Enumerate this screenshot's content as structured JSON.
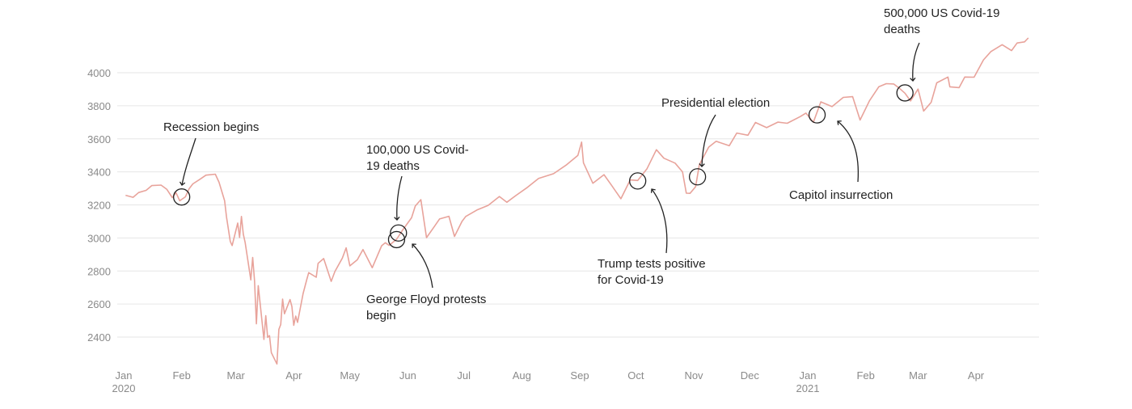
{
  "chart_data": {
    "type": "line",
    "title": "",
    "xlabel": "",
    "ylabel": "",
    "ylim": [
      2250,
      4220
    ],
    "y_ticks": [
      2400,
      2600,
      2800,
      3000,
      3200,
      3400,
      3600,
      3800,
      4000
    ],
    "grid": true,
    "x_ticks": [
      {
        "month": "Jan",
        "year": "2020",
        "date": "2020-01-01"
      },
      {
        "month": "Feb",
        "year": "",
        "date": "2020-02-01"
      },
      {
        "month": "Mar",
        "year": "",
        "date": "2020-03-01"
      },
      {
        "month": "Apr",
        "year": "",
        "date": "2020-04-01"
      },
      {
        "month": "May",
        "year": "",
        "date": "2020-05-01"
      },
      {
        "month": "Jun",
        "year": "",
        "date": "2020-06-01"
      },
      {
        "month": "Jul",
        "year": "",
        "date": "2020-07-01"
      },
      {
        "month": "Aug",
        "year": "",
        "date": "2020-08-01"
      },
      {
        "month": "Sep",
        "year": "",
        "date": "2020-09-01"
      },
      {
        "month": "Oct",
        "year": "",
        "date": "2020-10-01"
      },
      {
        "month": "Nov",
        "year": "",
        "date": "2020-11-01"
      },
      {
        "month": "Dec",
        "year": "",
        "date": "2020-12-01"
      },
      {
        "month": "Jan",
        "year": "2021",
        "date": "2021-01-01"
      },
      {
        "month": "Feb",
        "year": "",
        "date": "2021-02-01"
      },
      {
        "month": "Mar",
        "year": "",
        "date": "2021-03-01"
      },
      {
        "month": "Apr",
        "year": "",
        "date": "2021-04-01"
      }
    ],
    "x_range": [
      "2020-01-01",
      "2021-04-30"
    ],
    "series": [
      {
        "color": "#e8a39b",
        "points": [
          [
            "2020-01-02",
            3258
          ],
          [
            "2020-01-06",
            3246
          ],
          [
            "2020-01-09",
            3275
          ],
          [
            "2020-01-13",
            3288
          ],
          [
            "2020-01-16",
            3317
          ],
          [
            "2020-01-21",
            3320
          ],
          [
            "2020-01-24",
            3295
          ],
          [
            "2020-01-27",
            3244
          ],
          [
            "2020-01-29",
            3274
          ],
          [
            "2020-01-31",
            3225
          ],
          [
            "2020-02-03",
            3249
          ],
          [
            "2020-02-05",
            3298
          ],
          [
            "2020-02-07",
            3327
          ],
          [
            "2020-02-11",
            3357
          ],
          [
            "2020-02-14",
            3380
          ],
          [
            "2020-02-19",
            3386
          ],
          [
            "2020-02-21",
            3337
          ],
          [
            "2020-02-24",
            3225
          ],
          [
            "2020-02-25",
            3128
          ],
          [
            "2020-02-27",
            2979
          ],
          [
            "2020-02-28",
            2954
          ],
          [
            "2020-03-02",
            3090
          ],
          [
            "2020-03-03",
            3003
          ],
          [
            "2020-03-04",
            3130
          ],
          [
            "2020-03-05",
            3023
          ],
          [
            "2020-03-06",
            2972
          ],
          [
            "2020-03-09",
            2746
          ],
          [
            "2020-03-10",
            2882
          ],
          [
            "2020-03-11",
            2741
          ],
          [
            "2020-03-12",
            2480
          ],
          [
            "2020-03-13",
            2711
          ],
          [
            "2020-03-16",
            2386
          ],
          [
            "2020-03-17",
            2529
          ],
          [
            "2020-03-18",
            2398
          ],
          [
            "2020-03-19",
            2409
          ],
          [
            "2020-03-20",
            2305
          ],
          [
            "2020-03-23",
            2237
          ],
          [
            "2020-03-24",
            2447
          ],
          [
            "2020-03-25",
            2476
          ],
          [
            "2020-03-26",
            2630
          ],
          [
            "2020-03-27",
            2541
          ],
          [
            "2020-03-30",
            2627
          ],
          [
            "2020-03-31",
            2585
          ],
          [
            "2020-04-01",
            2471
          ],
          [
            "2020-04-02",
            2527
          ],
          [
            "2020-04-03",
            2489
          ],
          [
            "2020-04-06",
            2664
          ],
          [
            "2020-04-08",
            2750
          ],
          [
            "2020-04-09",
            2790
          ],
          [
            "2020-04-13",
            2762
          ],
          [
            "2020-04-14",
            2846
          ],
          [
            "2020-04-17",
            2875
          ],
          [
            "2020-04-21",
            2737
          ],
          [
            "2020-04-23",
            2797
          ],
          [
            "2020-04-27",
            2878
          ],
          [
            "2020-04-29",
            2940
          ],
          [
            "2020-05-01",
            2831
          ],
          [
            "2020-05-05",
            2868
          ],
          [
            "2020-05-08",
            2930
          ],
          [
            "2020-05-13",
            2820
          ],
          [
            "2020-05-18",
            2953
          ],
          [
            "2020-05-20",
            2971
          ],
          [
            "2020-05-22",
            2955
          ],
          [
            "2020-05-26",
            2992
          ],
          [
            "2020-05-29",
            3044
          ],
          [
            "2020-06-03",
            3122
          ],
          [
            "2020-06-05",
            3193
          ],
          [
            "2020-06-08",
            3232
          ],
          [
            "2020-06-11",
            3002
          ],
          [
            "2020-06-15",
            3066
          ],
          [
            "2020-06-18",
            3115
          ],
          [
            "2020-06-23",
            3131
          ],
          [
            "2020-06-26",
            3009
          ],
          [
            "2020-06-30",
            3100
          ],
          [
            "2020-07-02",
            3130
          ],
          [
            "2020-07-08",
            3169
          ],
          [
            "2020-07-14",
            3197
          ],
          [
            "2020-07-20",
            3251
          ],
          [
            "2020-07-24",
            3216
          ],
          [
            "2020-07-29",
            3258
          ],
          [
            "2020-08-04",
            3306
          ],
          [
            "2020-08-10",
            3360
          ],
          [
            "2020-08-18",
            3389
          ],
          [
            "2020-08-25",
            3443
          ],
          [
            "2020-08-31",
            3500
          ],
          [
            "2020-09-02",
            3580
          ],
          [
            "2020-09-03",
            3455
          ],
          [
            "2020-09-08",
            3331
          ],
          [
            "2020-09-14",
            3383
          ],
          [
            "2020-09-18",
            3319
          ],
          [
            "2020-09-23",
            3237
          ],
          [
            "2020-09-28",
            3351
          ],
          [
            "2020-10-02",
            3348
          ],
          [
            "2020-10-07",
            3419
          ],
          [
            "2020-10-12",
            3534
          ],
          [
            "2020-10-16",
            3483
          ],
          [
            "2020-10-22",
            3453
          ],
          [
            "2020-10-26",
            3400
          ],
          [
            "2020-10-28",
            3271
          ],
          [
            "2020-10-30",
            3270
          ],
          [
            "2020-11-02",
            3310
          ],
          [
            "2020-11-04",
            3443
          ],
          [
            "2020-11-09",
            3550
          ],
          [
            "2020-11-13",
            3585
          ],
          [
            "2020-11-20",
            3558
          ],
          [
            "2020-11-24",
            3635
          ],
          [
            "2020-11-30",
            3622
          ],
          [
            "2020-12-04",
            3699
          ],
          [
            "2020-12-10",
            3668
          ],
          [
            "2020-12-16",
            3701
          ],
          [
            "2020-12-21",
            3694
          ],
          [
            "2020-12-28",
            3735
          ],
          [
            "2020-12-31",
            3756
          ],
          [
            "2021-01-04",
            3700
          ],
          [
            "2021-01-08",
            3824
          ],
          [
            "2021-01-14",
            3795
          ],
          [
            "2021-01-20",
            3851
          ],
          [
            "2021-01-25",
            3855
          ],
          [
            "2021-01-29",
            3714
          ],
          [
            "2021-02-03",
            3830
          ],
          [
            "2021-02-08",
            3915
          ],
          [
            "2021-02-12",
            3934
          ],
          [
            "2021-02-16",
            3932
          ],
          [
            "2021-02-19",
            3906
          ],
          [
            "2021-02-22",
            3876
          ],
          [
            "2021-02-25",
            3829
          ],
          [
            "2021-03-01",
            3901
          ],
          [
            "2021-03-04",
            3768
          ],
          [
            "2021-03-08",
            3821
          ],
          [
            "2021-03-11",
            3939
          ],
          [
            "2021-03-17",
            3974
          ],
          [
            "2021-03-18",
            3915
          ],
          [
            "2021-03-23",
            3910
          ],
          [
            "2021-03-26",
            3974
          ],
          [
            "2021-03-31",
            3973
          ],
          [
            "2021-04-05",
            4078
          ],
          [
            "2021-04-09",
            4128
          ],
          [
            "2021-04-15",
            4170
          ],
          [
            "2021-04-20",
            4134
          ],
          [
            "2021-04-23",
            4180
          ],
          [
            "2021-04-27",
            4187
          ],
          [
            "2021-04-29",
            4211
          ]
        ]
      }
    ],
    "annotations": [
      {
        "text": [
          "Recession begins"
        ],
        "date": "2020-02-01",
        "value": 3248
      },
      {
        "text": [
          "100,000 US Covid-",
          "19 deaths"
        ],
        "date": "2020-05-27",
        "value": 3030
      },
      {
        "text": [
          "George Floyd protests",
          "begin"
        ],
        "date": "2020-05-26",
        "value": 2990
      },
      {
        "text": [
          "Trump tests positive",
          "for Covid-19"
        ],
        "date": "2020-10-02",
        "value": 3345
      },
      {
        "text": [
          "Presidential election"
        ],
        "date": "2020-11-03",
        "value": 3370
      },
      {
        "text": [
          "Capitol insurrection"
        ],
        "date": "2021-01-06",
        "value": 3745
      },
      {
        "text": [
          "500,000 US Covid-19",
          "deaths"
        ],
        "date": "2021-02-22",
        "value": 3878
      }
    ]
  }
}
